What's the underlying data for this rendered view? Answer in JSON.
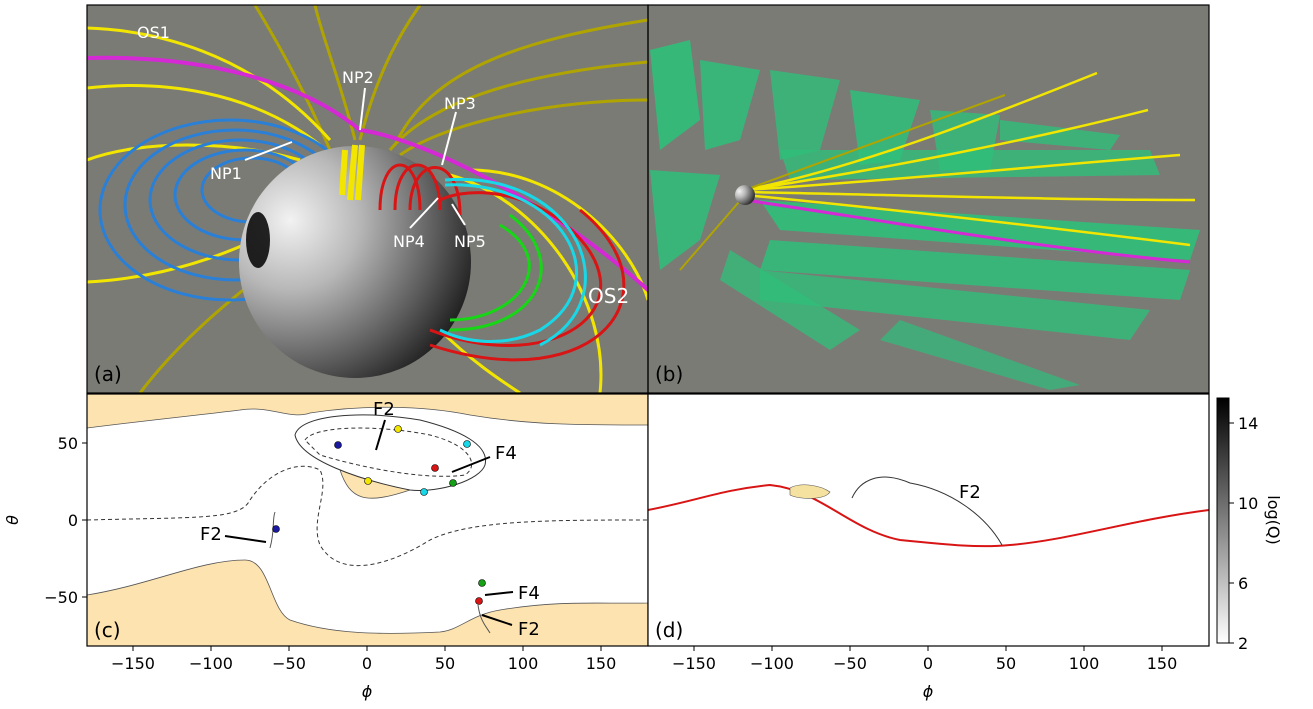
{
  "panels": {
    "a": {
      "label": "(a)",
      "annotations": [
        "OS1",
        "NP2",
        "NP3",
        "NP1",
        "NP4",
        "NP5",
        "OS2"
      ]
    },
    "b": {
      "label": "(b)"
    },
    "c": {
      "label": "(c)",
      "annotations": [
        "F2",
        "F4",
        "F2",
        "F4",
        "F2"
      ]
    },
    "d": {
      "label": "(d)",
      "annotations": [
        "F2"
      ]
    }
  },
  "axes": {
    "xlabel": "ϕ",
    "ylabel": "θ",
    "c_xticks": [
      "−150",
      "−100",
      "−50",
      "0",
      "50",
      "100",
      "150"
    ],
    "d_xticks": [
      "−150",
      "−100",
      "−50",
      "0",
      "50",
      "100",
      "150"
    ],
    "c_yticks": [
      "50",
      "0",
      "−50"
    ]
  },
  "colorbar": {
    "label": "log(Q)",
    "ticks": [
      "14",
      "10",
      "6",
      "2"
    ]
  },
  "colors": {
    "gray_bg": "#7b7b76",
    "blue": "#2a7fd6",
    "yellow": "#f2e600",
    "olive": "#b0a400",
    "magenta": "#d429d4",
    "red": "#d81414",
    "cyan": "#18d8e8",
    "green": "#16d616",
    "teal": "#2fbf7a",
    "tan": "#fde3b0"
  },
  "chart_data": [
    {
      "type": "line",
      "panel": "c",
      "xlim": [
        -180,
        180
      ],
      "ylim": [
        -85,
        80
      ],
      "xlabel": "ϕ",
      "ylabel": "θ",
      "series": [],
      "points": [
        {
          "x": -20,
          "y": 48,
          "color": "#1a1aa0"
        },
        {
          "x": 20,
          "y": 58,
          "color": "#f2e600"
        },
        {
          "x": 0,
          "y": 25,
          "color": "#f2e600"
        },
        {
          "x": 45,
          "y": 32,
          "color": "#d81414"
        },
        {
          "x": 55,
          "y": 23,
          "color": "#16a016"
        },
        {
          "x": 65,
          "y": 48,
          "color": "#18d8e8"
        },
        {
          "x": 37,
          "y": 17,
          "color": "#18d8e8"
        },
        {
          "x": -60,
          "y": -7,
          "color": "#1a1aa0"
        },
        {
          "x": 72,
          "y": -40,
          "color": "#16a016"
        },
        {
          "x": 71,
          "y": -52,
          "color": "#d81414"
        }
      ]
    },
    {
      "type": "line",
      "panel": "d",
      "xlim": [
        -180,
        180
      ],
      "ylim": [
        -85,
        80
      ],
      "xlabel": "ϕ",
      "series": []
    },
    {
      "type": "heatmap",
      "panel": "colorbar",
      "label": "log(Q)",
      "range": [
        2,
        15
      ],
      "ticks": [
        2,
        6,
        10,
        14
      ]
    }
  ]
}
